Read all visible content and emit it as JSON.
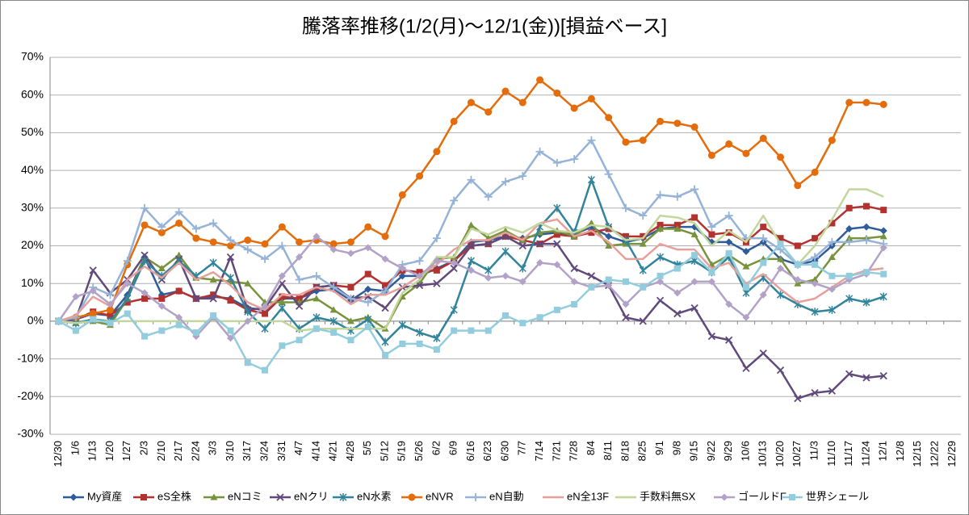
{
  "chart_data": {
    "type": "line",
    "title": "騰落率推移(1/2(月)～12/1(金))[損益ベース]",
    "categories": [
      "12/30",
      "1/6",
      "1/13",
      "1/20",
      "1/27",
      "2/3",
      "2/10",
      "2/17",
      "2/24",
      "3/3",
      "3/10",
      "3/17",
      "3/24",
      "3/31",
      "4/7",
      "4/14",
      "4/21",
      "4/28",
      "5/5",
      "5/12",
      "5/19",
      "5/26",
      "6/2",
      "6/9",
      "6/16",
      "6/23",
      "6/30",
      "7/7",
      "7/14",
      "7/21",
      "7/28",
      "8/4",
      "8/11",
      "8/18",
      "8/25",
      "9/1",
      "9/8",
      "9/15",
      "9/22",
      "9/29",
      "10/6",
      "10/13",
      "10/20",
      "10/27",
      "11/3",
      "11/10",
      "11/17",
      "11/24",
      "12/1",
      "12/8",
      "12/15",
      "12/22",
      "12/29"
    ],
    "ylim": [
      -30,
      70
    ],
    "yticks": [
      {
        "value": -30,
        "label": "-30%"
      },
      {
        "value": -20,
        "label": "-20%"
      },
      {
        "value": -10,
        "label": "-10%"
      },
      {
        "value": 0,
        "label": "0%"
      },
      {
        "value": 10,
        "label": "10%"
      },
      {
        "value": 20,
        "label": "20%"
      },
      {
        "value": 30,
        "label": "30%"
      },
      {
        "value": 40,
        "label": "40%"
      },
      {
        "value": 50,
        "label": "50%"
      },
      {
        "value": 60,
        "label": "60%"
      },
      {
        "value": 70,
        "label": "70%"
      }
    ],
    "grid": true,
    "legend": "bottom",
    "series": [
      {
        "name": "My資産",
        "color": "#2f5c9a",
        "marker": "diamond",
        "values": [
          0,
          0.5,
          2,
          1.5,
          7,
          17,
          7,
          8,
          6,
          6.5,
          6,
          3.5,
          3,
          6,
          6,
          8,
          8.5,
          5.5,
          8.5,
          8,
          12,
          12,
          14,
          16,
          21,
          21.5,
          22.5,
          22,
          23,
          23.5,
          23,
          25,
          22.5,
          21,
          22,
          24.5,
          25,
          25,
          21,
          21,
          18.5,
          21,
          16.5,
          15,
          16,
          20,
          24.5,
          25,
          24,
          null,
          null,
          null,
          null
        ]
      },
      {
        "name": "eS全株",
        "color": "#b3322f",
        "marker": "square",
        "values": [
          0,
          0.5,
          2.5,
          1.5,
          5,
          6,
          6,
          8,
          6,
          7,
          5.5,
          3,
          2,
          6.5,
          6,
          9,
          9.5,
          9,
          12.5,
          9.5,
          13.5,
          13,
          13.5,
          16,
          20,
          20.5,
          22.5,
          21.5,
          20.5,
          23,
          22.5,
          23.5,
          24.5,
          22.5,
          22.5,
          25.5,
          25.5,
          27.5,
          23,
          23.5,
          21,
          25,
          22,
          20,
          22,
          26,
          30,
          30.5,
          29.5,
          null,
          null,
          null,
          null
        ]
      },
      {
        "name": "eNコミ",
        "color": "#77933c",
        "marker": "triangle",
        "values": [
          0,
          -0.5,
          0,
          -1,
          6,
          17,
          14,
          17.5,
          11.5,
          11,
          10.5,
          10,
          5,
          5,
          5,
          6,
          3,
          0,
          1,
          -2,
          6.5,
          10,
          16.5,
          17,
          25.5,
          22,
          24,
          21.5,
          23.5,
          24,
          22.5,
          26,
          20,
          20.5,
          20.5,
          24.5,
          24.5,
          23,
          15,
          17.5,
          14.5,
          16.5,
          16.5,
          10,
          11,
          17,
          22,
          22,
          22.5,
          null,
          null,
          null,
          null
        ]
      },
      {
        "name": "eNクリ",
        "color": "#604a7b",
        "marker": "x",
        "values": [
          0,
          0.5,
          13.5,
          7.5,
          11,
          17.5,
          11,
          16.5,
          6,
          6,
          17,
          3,
          3.5,
          10,
          4,
          9,
          9.5,
          6,
          6.5,
          3.5,
          9,
          9.5,
          10,
          14,
          20,
          20.5,
          22.5,
          20,
          20.5,
          20.5,
          14,
          12,
          9.5,
          1,
          0,
          5.5,
          2,
          3.5,
          -4,
          -5,
          -12.5,
          -8.5,
          -13,
          -20.5,
          -19,
          -18.5,
          -14,
          -15,
          -14.5,
          null,
          null,
          null,
          null
        ]
      },
      {
        "name": "eN水素",
        "color": "#31849b",
        "marker": "asterisk",
        "values": [
          0,
          -0.5,
          0.5,
          0,
          6,
          16,
          12,
          16,
          12,
          15.5,
          11.5,
          2.5,
          -2,
          3.5,
          -2,
          1,
          0,
          -2.5,
          0.5,
          -5.5,
          -1,
          -3,
          -4.5,
          3,
          16,
          13.5,
          18.5,
          14,
          25,
          30,
          23.5,
          37.5,
          25,
          21.5,
          13.5,
          17,
          15,
          16,
          13,
          17,
          7.5,
          11.5,
          7,
          4.5,
          2.5,
          3,
          6,
          5,
          6.5,
          null,
          null,
          null,
          null
        ]
      },
      {
        "name": "eNVR",
        "color": "#e46c0a",
        "marker": "circle",
        "values": [
          0,
          1,
          2,
          3,
          15,
          25.5,
          23.5,
          26,
          22,
          21,
          20,
          21.5,
          20.5,
          25,
          21,
          21.5,
          20.5,
          21,
          25,
          22.5,
          33.5,
          38.5,
          45,
          53,
          58,
          55.5,
          61,
          58,
          64,
          60.5,
          56.5,
          59,
          54,
          47.5,
          48,
          53,
          52.5,
          51.5,
          44,
          47,
          44.5,
          48.5,
          43.5,
          36,
          39.5,
          48,
          58,
          58,
          57.5,
          null,
          null,
          null,
          null
        ]
      },
      {
        "name": "eN自動",
        "color": "#95b3d7",
        "marker": "plus",
        "values": [
          0,
          1,
          9,
          7,
          16,
          30,
          25,
          29,
          24.5,
          26,
          21.5,
          19,
          16.5,
          20,
          11,
          12,
          9,
          6,
          5,
          8,
          15,
          16,
          22,
          32,
          37.5,
          33,
          37,
          38.5,
          45,
          42,
          43,
          48,
          39,
          30,
          28,
          33.5,
          33,
          35,
          25,
          28,
          22,
          22,
          19,
          15,
          17,
          21,
          21,
          21.5,
          20.5,
          null,
          null,
          null,
          null
        ]
      },
      {
        "name": "eN全13F",
        "color": "#e6a09c",
        "marker": "none",
        "values": [
          0,
          1.5,
          6.5,
          4,
          11,
          14.5,
          11.5,
          15.5,
          11,
          13,
          9.5,
          5,
          3,
          7,
          7,
          9,
          8,
          4.5,
          7,
          7,
          9,
          12,
          15,
          19,
          21.5,
          21.5,
          23.5,
          21.5,
          26,
          27,
          22.5,
          24,
          21,
          16.5,
          16.5,
          20.5,
          19,
          19,
          14,
          15.5,
          10,
          12.5,
          8.5,
          5,
          6,
          9,
          12,
          13.5,
          14,
          null,
          null,
          null,
          null
        ]
      },
      {
        "name": "手数料無SX",
        "color": "#c3d69b",
        "marker": "none",
        "values": [
          0,
          -0.5,
          0,
          0,
          0,
          0,
          0,
          0,
          0,
          0,
          0,
          0,
          0,
          0,
          -2.5,
          -2,
          -2,
          -2,
          -2,
          -2,
          7.5,
          11,
          17,
          17,
          24.5,
          23,
          25,
          23.5,
          26,
          24,
          23.5,
          25.5,
          25,
          21.5,
          22,
          28,
          27.5,
          26,
          20,
          24,
          21,
          28,
          20.5,
          15,
          20,
          27,
          35,
          35,
          33,
          null,
          null,
          null,
          null
        ]
      },
      {
        "name": "ゴールドF",
        "color": "#b3a2c7",
        "marker": "diamond",
        "values": [
          0,
          6.5,
          8,
          4.5,
          10,
          7.5,
          4,
          1,
          -4,
          1,
          -4.5,
          0,
          4,
          12,
          17,
          22.5,
          19,
          18,
          19.5,
          16.5,
          14,
          12,
          16,
          15.5,
          13.5,
          11.5,
          12,
          10.5,
          15.5,
          15,
          10.5,
          9,
          9.5,
          4.5,
          9,
          10.5,
          7.5,
          10.5,
          10.5,
          4.5,
          1,
          7,
          14,
          11,
          10,
          8.5,
          11,
          12.5,
          19.5,
          null,
          null,
          null,
          null
        ]
      },
      {
        "name": "世界シェール",
        "color": "#93cddd",
        "marker": "square",
        "values": [
          0,
          -2.5,
          0.5,
          -0.5,
          2,
          -4,
          -2.5,
          -1,
          -3,
          1.5,
          -2.5,
          -11,
          -13,
          -6.5,
          -5,
          -2,
          -3,
          -5,
          -1.5,
          -9,
          -6,
          -6,
          -7.5,
          -2.5,
          -2.5,
          -2.5,
          1.5,
          -0.5,
          1,
          3,
          4.5,
          9,
          11,
          10.5,
          9,
          12,
          14,
          17.5,
          13,
          18,
          9,
          15.5,
          20.5,
          15,
          15,
          12,
          12,
          13,
          12.5,
          null,
          null,
          null,
          null
        ]
      }
    ]
  }
}
